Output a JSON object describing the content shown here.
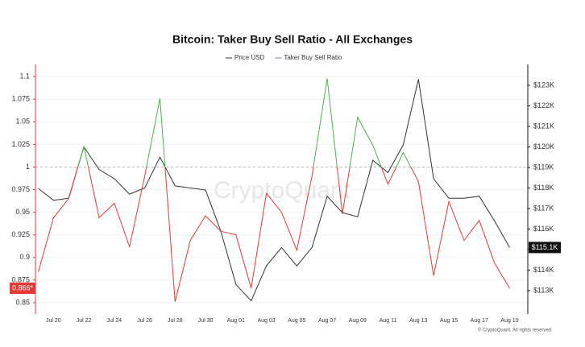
{
  "chart_data": {
    "type": "line",
    "title": "Bitcoin: Taker Buy Sell Ratio - All Exchanges",
    "watermark": "CryptoQuant",
    "copyright": "© CryptoQuant. All rights reserved",
    "categories": [
      null,
      "Jul 20",
      null,
      "Jul 22",
      null,
      "Jul 24",
      null,
      "Jul 26",
      null,
      "Jul 28",
      null,
      "Jul 30",
      null,
      "Aug 01",
      null,
      "Aug 03",
      null,
      "Aug 05",
      null,
      "Aug 07",
      null,
      "Aug 09",
      null,
      "Aug 11",
      null,
      "Aug 13",
      null,
      "Aug 15",
      null,
      "Aug 17",
      null,
      "Aug 19"
    ],
    "series": [
      {
        "name": "Price USD",
        "color": "#333333",
        "axis": "y2",
        "values": [
          117980,
          117400,
          117500,
          120000,
          118900,
          118450,
          117700,
          118000,
          119500,
          118100,
          118000,
          117900,
          115900,
          113300,
          112500,
          114200,
          115100,
          114200,
          115100,
          117600,
          116800,
          116600,
          119350,
          118750,
          120100,
          123300,
          118450,
          117500,
          117500,
          117600,
          116400,
          115100
        ]
      },
      {
        "name": "Taker Buy Sell Ratio",
        "color": "#7b6fd0",
        "color_above": "#4caf50",
        "color_below": "#e53935",
        "values": [
          0.884,
          0.944,
          0.965,
          1.023,
          0.944,
          0.96,
          0.912,
          0.99,
          1.076,
          0.851,
          0.919,
          0.946,
          0.929,
          0.925,
          0.866,
          0.971,
          0.95,
          0.908,
          0.99,
          1.098,
          0.948,
          1.055,
          1.024,
          0.981,
          1.016,
          0.984,
          0.88,
          0.962,
          0.919,
          0.941,
          0.894,
          0.866
        ]
      }
    ],
    "ylim": [
      0.8375,
      1.1135
    ],
    "yticks": [
      1.1,
      1.075,
      1.05,
      1.025,
      1,
      0.975,
      0.95,
      0.925,
      0.9,
      0.875,
      0.85
    ],
    "y2lim": [
      111860,
      124020
    ],
    "y2ticks": [
      {
        "value": 123000,
        "label": "$123K"
      },
      {
        "value": 122000,
        "label": "$122K"
      },
      {
        "value": 121000,
        "label": "$121K"
      },
      {
        "value": 120000,
        "label": "$120K"
      },
      {
        "value": 119000,
        "label": "$119K"
      },
      {
        "value": 118000,
        "label": "$118K"
      },
      {
        "value": 117000,
        "label": "$117K"
      },
      {
        "value": 116000,
        "label": "$116K"
      },
      {
        "value": 115000,
        "label": "$115K"
      },
      {
        "value": 114000,
        "label": "$114K"
      },
      {
        "value": 113000,
        "label": "$113K"
      }
    ],
    "reference_line": 1,
    "grid": true,
    "left_axis_color": "#e53935",
    "current_ratio_label": "0.866*",
    "current_price_label": "$115.1K"
  }
}
